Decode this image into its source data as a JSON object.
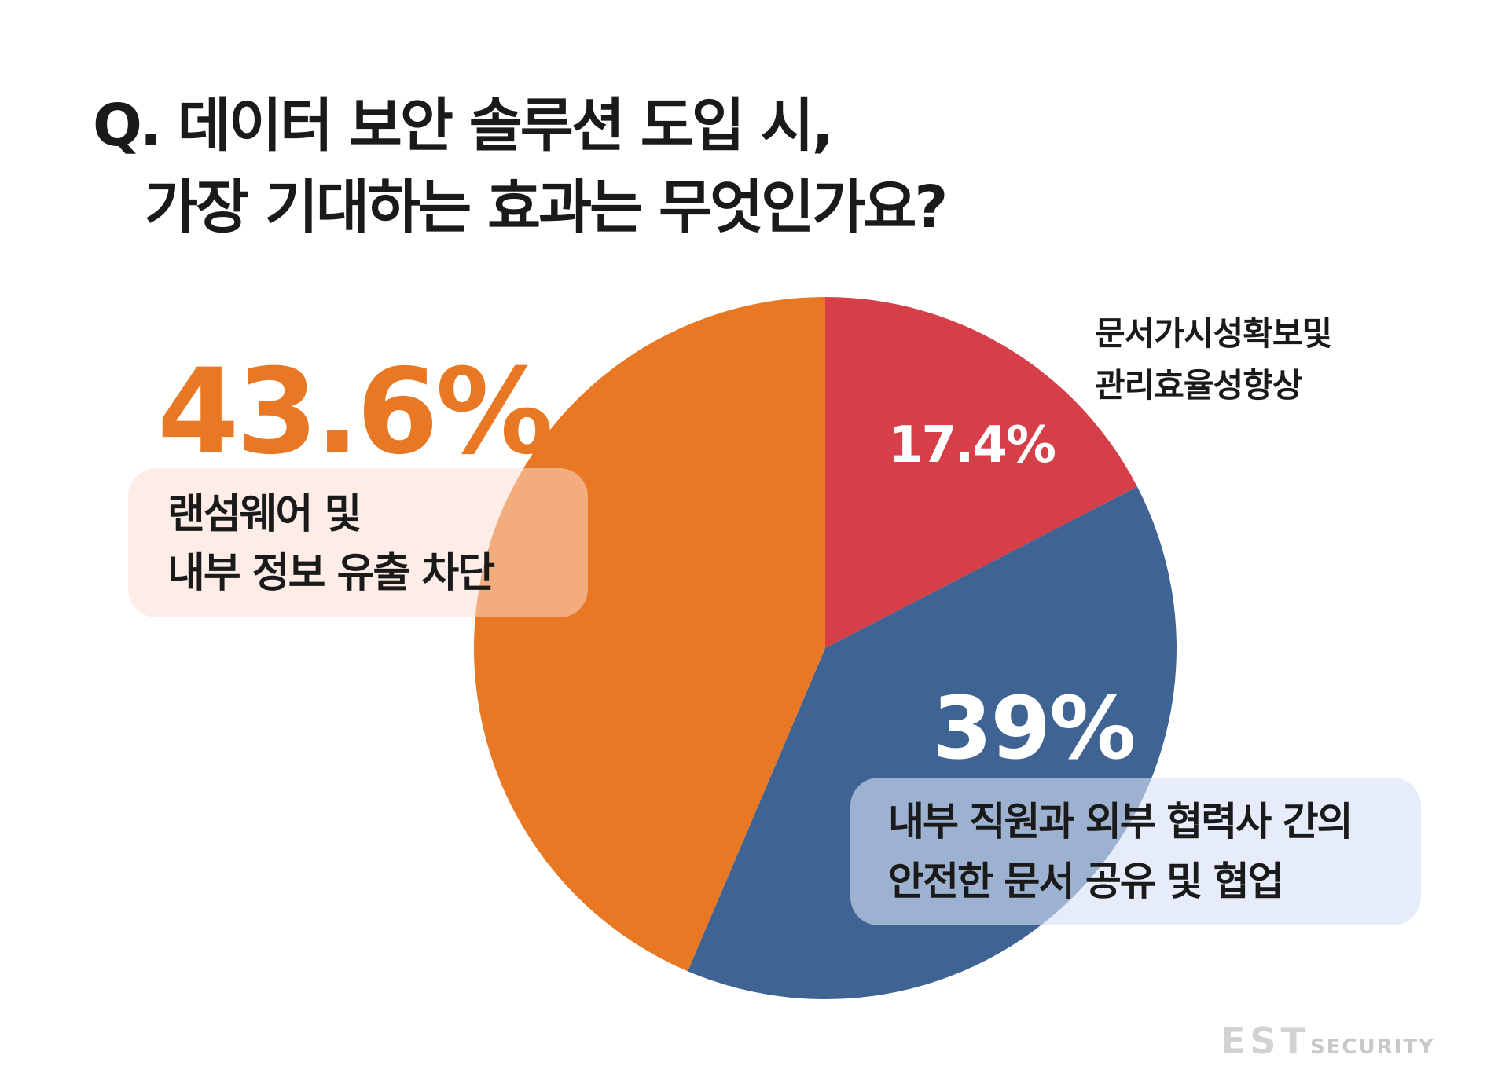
{
  "title": {
    "line1": "Q. 데이터 보안 솔루션 도입 시,",
    "line2": "가장 기대하는 효과는 무엇인가요?"
  },
  "chart_data": {
    "type": "pie",
    "start": "top",
    "direction": "clockwise",
    "slices": [
      {
        "value": 17.4,
        "value_label": "17.4%",
        "label_lines": [
          "문서가시성확보및",
          "관리효율성향상"
        ],
        "color": "#d63f48"
      },
      {
        "value": 39,
        "value_label": "39%",
        "label_lines": [
          "내부 직원과 외부 협력사 간의",
          "안전한 문서 공유 및 협업"
        ],
        "color": "#3f6494"
      },
      {
        "value": 43.6,
        "value_label": "43.6%",
        "label_lines": [
          "랜섬웨어 및",
          "내부 정보 유출 차단"
        ],
        "color": "#e97824"
      }
    ]
  },
  "logo": {
    "brand": "EST",
    "suffix": "SECURITY"
  }
}
